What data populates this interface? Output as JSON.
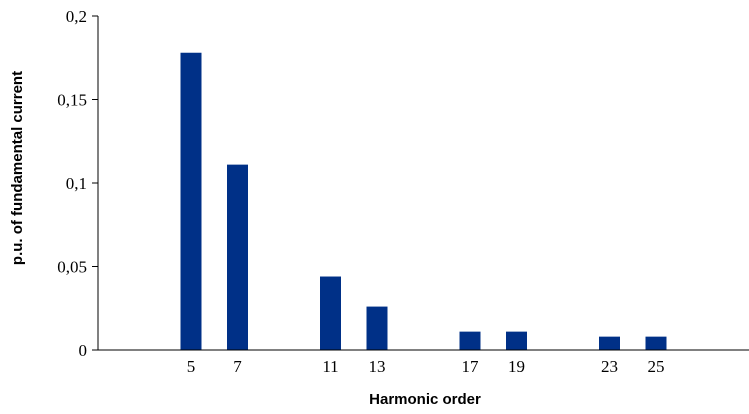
{
  "chart_data": {
    "type": "bar",
    "xlabel": "Harmonic order",
    "ylabel": "p.u. of fundamental current",
    "ylim": [
      0,
      0.2
    ],
    "y_ticks": [
      "0",
      "0,05",
      "0,1",
      "0,15",
      "0,2"
    ],
    "x_range": [
      1,
      29
    ],
    "categories": [
      "5",
      "7",
      "11",
      "13",
      "17",
      "19",
      "23",
      "25"
    ],
    "x": [
      5,
      7,
      11,
      13,
      17,
      19,
      23,
      25
    ],
    "values": [
      0.178,
      0.111,
      0.044,
      0.026,
      0.011,
      0.011,
      0.008,
      0.008
    ],
    "bar_color": "#003087",
    "grid": false,
    "legend": "none"
  }
}
